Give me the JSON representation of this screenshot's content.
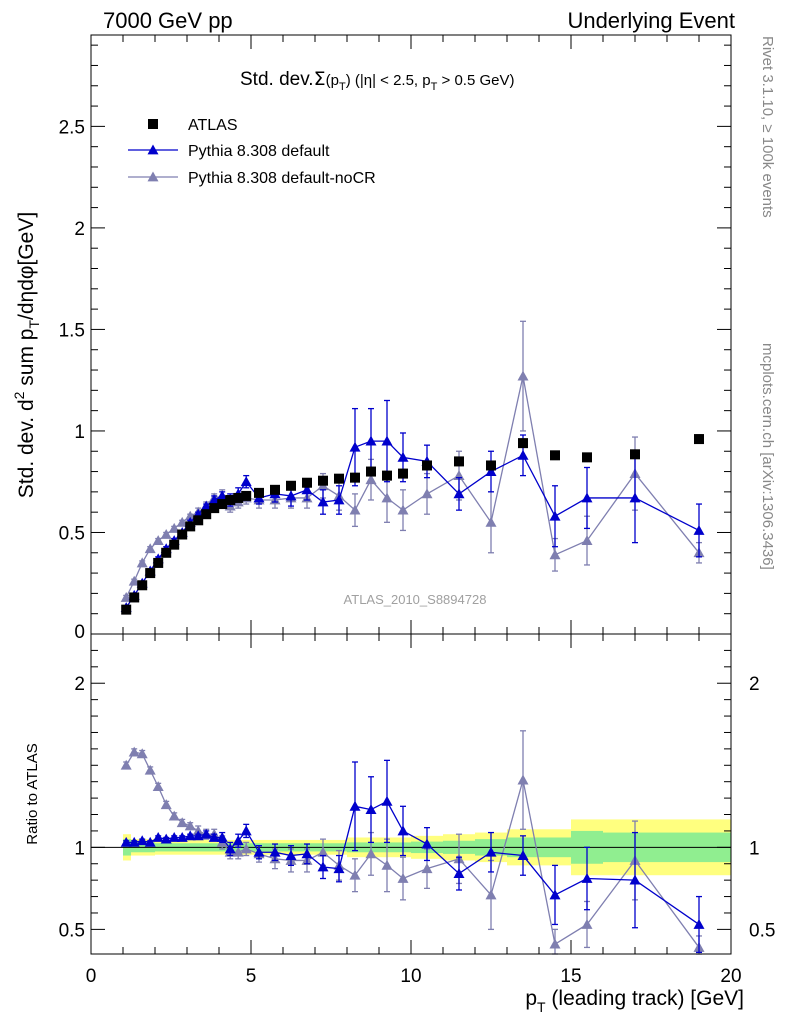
{
  "header": {
    "left": "7000 GeV pp",
    "right": "Underlying Event"
  },
  "side_labels": {
    "rivet": "Rivet 3.1.10, ≥ 100k events",
    "mcplots": "mcplots.cern.ch [arXiv:1306.3436]"
  },
  "watermark": "ATLAS_2010_S8894728",
  "chart_data": [
    {
      "type": "scatter",
      "panel": "main",
      "title_parts": {
        "prefix": "Std. dev.",
        "sigma": "Σ",
        "arg": "(p",
        "sub": "T",
        "close": ")",
        "cut1": "(|η| < 2.5, p",
        "cut_sub": "T",
        "cut2": " > 0.5 GeV)"
      },
      "ylabel_parts": {
        "a": "Std. dev. d",
        "sup": "2",
        "b": " sum p",
        "sub": "T",
        "c": "/dηdφ[GeV]"
      },
      "xlim": [
        0,
        20
      ],
      "ylim": [
        0,
        2.95
      ],
      "yticks": [
        0.5,
        1,
        1.5,
        2,
        2.5
      ],
      "ytick_labels": [
        "0.5",
        "1",
        "1.5",
        "2",
        "2.5"
      ],
      "ytick_bottom_label": "0",
      "legend_placement": "top-left",
      "series": [
        {
          "name": "ATLAS",
          "color": "#000000",
          "marker": "square",
          "x": [
            1.1,
            1.35,
            1.6,
            1.85,
            2.1,
            2.35,
            2.6,
            2.85,
            3.1,
            3.35,
            3.6,
            3.85,
            4.1,
            4.35,
            4.6,
            4.85,
            5.25,
            5.75,
            6.25,
            6.75,
            7.25,
            7.75,
            8.25,
            8.75,
            9.25,
            9.75,
            10.5,
            11.5,
            12.5,
            13.5,
            14.5,
            15.5,
            17.0,
            19.0
          ],
          "y": [
            0.12,
            0.18,
            0.24,
            0.3,
            0.35,
            0.4,
            0.44,
            0.49,
            0.53,
            0.56,
            0.59,
            0.62,
            0.64,
            0.66,
            0.67,
            0.68,
            0.695,
            0.71,
            0.73,
            0.745,
            0.755,
            0.765,
            0.77,
            0.8,
            0.78,
            0.79,
            0.83,
            0.85,
            0.83,
            0.94,
            0.88,
            0.87,
            0.885,
            0.96
          ],
          "err": [
            0.01,
            0.01,
            0.01,
            0.01,
            0.01,
            0.01,
            0.01,
            0.01,
            0.01,
            0.01,
            0.01,
            0.01,
            0.01,
            0.01,
            0.01,
            0.01,
            0.01,
            0.01,
            0.01,
            0.01,
            0.01,
            0.01,
            0.02,
            0.02,
            0.02,
            0.02,
            0.02,
            0.02,
            0.02,
            0.02,
            0.02,
            0.02,
            0.02,
            0.02
          ]
        },
        {
          "name": "Pythia 8.308 default",
          "color": "#0000cc",
          "marker": "triangle",
          "x": [
            1.1,
            1.35,
            1.6,
            1.85,
            2.1,
            2.35,
            2.6,
            2.85,
            3.1,
            3.35,
            3.6,
            3.85,
            4.1,
            4.35,
            4.6,
            4.85,
            5.25,
            5.75,
            6.25,
            6.75,
            7.25,
            7.75,
            8.25,
            8.75,
            9.25,
            9.75,
            10.5,
            11.5,
            12.5,
            13.5,
            14.5,
            15.5,
            17.0,
            19.0
          ],
          "y": [
            0.13,
            0.19,
            0.25,
            0.31,
            0.37,
            0.42,
            0.46,
            0.5,
            0.55,
            0.59,
            0.63,
            0.66,
            0.68,
            0.66,
            0.69,
            0.75,
            0.67,
            0.69,
            0.68,
            0.71,
            0.65,
            0.66,
            0.92,
            0.95,
            0.95,
            0.87,
            0.85,
            0.69,
            0.8,
            0.88,
            0.58,
            0.67,
            0.67,
            0.51
          ],
          "err": [
            0.01,
            0.01,
            0.01,
            0.01,
            0.01,
            0.01,
            0.01,
            0.01,
            0.01,
            0.01,
            0.01,
            0.02,
            0.02,
            0.03,
            0.03,
            0.03,
            0.03,
            0.04,
            0.05,
            0.05,
            0.06,
            0.07,
            0.19,
            0.16,
            0.2,
            0.12,
            0.08,
            0.08,
            0.1,
            0.1,
            0.15,
            0.15,
            0.22,
            0.13
          ]
        },
        {
          "name": "Pythia 8.308 default-noCR",
          "color": "#7f7fb0",
          "marker": "triangle",
          "x": [
            1.1,
            1.35,
            1.6,
            1.85,
            2.1,
            2.35,
            2.6,
            2.85,
            3.1,
            3.35,
            3.6,
            3.85,
            4.1,
            4.35,
            4.6,
            4.85,
            5.25,
            5.75,
            6.25,
            6.75,
            7.25,
            7.75,
            8.25,
            8.75,
            9.25,
            9.75,
            10.5,
            11.5,
            12.5,
            13.5,
            14.5,
            15.5,
            17.0,
            19.0
          ],
          "y": [
            0.18,
            0.26,
            0.35,
            0.42,
            0.46,
            0.49,
            0.52,
            0.55,
            0.58,
            0.6,
            0.63,
            0.67,
            0.68,
            0.63,
            0.65,
            0.67,
            0.66,
            0.66,
            0.67,
            0.67,
            0.73,
            0.68,
            0.61,
            0.76,
            0.67,
            0.61,
            0.69,
            0.78,
            0.55,
            1.27,
            0.39,
            0.46,
            0.79,
            0.4
          ],
          "err": [
            0.01,
            0.01,
            0.01,
            0.01,
            0.01,
            0.01,
            0.01,
            0.01,
            0.01,
            0.02,
            0.02,
            0.02,
            0.03,
            0.03,
            0.03,
            0.03,
            0.04,
            0.04,
            0.05,
            0.05,
            0.06,
            0.07,
            0.08,
            0.1,
            0.12,
            0.1,
            0.1,
            0.12,
            0.15,
            0.27,
            0.08,
            0.12,
            0.18,
            0.05
          ]
        }
      ]
    },
    {
      "type": "scatter",
      "panel": "ratio",
      "ylabel": "Ratio to ATLAS",
      "xlabel_parts": {
        "a": "p",
        "sub": "T",
        "b": " (leading track) [GeV]"
      },
      "xlim": [
        0,
        20
      ],
      "ylim": [
        0.35,
        2.3
      ],
      "yticks": [
        0.5,
        1,
        2
      ],
      "ytick_labels": [
        "0.5",
        "1",
        "2"
      ],
      "xticks": [
        0,
        5,
        10,
        15,
        20
      ],
      "xtick_labels": [
        "0",
        "5",
        "10",
        "15",
        "20"
      ],
      "band_colors": {
        "stat": "#90ee90",
        "total": "#ffff7f"
      },
      "band_bins": [
        {
          "x0": 1.0,
          "x1": 1.25,
          "inner": 0.05,
          "outer": 0.08
        },
        {
          "x0": 1.25,
          "x1": 2.0,
          "inner": 0.03,
          "outer": 0.05
        },
        {
          "x0": 2.0,
          "x1": 5.0,
          "inner": 0.025,
          "outer": 0.045
        },
        {
          "x0": 5.0,
          "x1": 8.0,
          "inner": 0.025,
          "outer": 0.045
        },
        {
          "x0": 8.0,
          "x1": 10.0,
          "inner": 0.03,
          "outer": 0.06
        },
        {
          "x0": 10.0,
          "x1": 11.0,
          "inner": 0.035,
          "outer": 0.07
        },
        {
          "x0": 11.0,
          "x1": 12.0,
          "inner": 0.04,
          "outer": 0.08
        },
        {
          "x0": 12.0,
          "x1": 13.0,
          "inner": 0.05,
          "outer": 0.09
        },
        {
          "x0": 13.0,
          "x1": 14.0,
          "inner": 0.06,
          "outer": 0.11
        },
        {
          "x0": 14.0,
          "x1": 15.0,
          "inner": 0.06,
          "outer": 0.11
        },
        {
          "x0": 15.0,
          "x1": 16.0,
          "inner": 0.1,
          "outer": 0.17
        },
        {
          "x0": 16.0,
          "x1": 18.0,
          "inner": 0.09,
          "outer": 0.17
        },
        {
          "x0": 18.0,
          "x1": 20.0,
          "inner": 0.09,
          "outer": 0.17
        }
      ],
      "series": [
        {
          "name": "Pythia 8.308 default",
          "color": "#0000cc",
          "x": [
            1.1,
            1.35,
            1.6,
            1.85,
            2.1,
            2.35,
            2.6,
            2.85,
            3.1,
            3.35,
            3.6,
            3.85,
            4.1,
            4.35,
            4.6,
            4.85,
            5.25,
            5.75,
            6.25,
            6.75,
            7.25,
            7.75,
            8.25,
            8.75,
            9.25,
            9.75,
            10.5,
            11.5,
            12.5,
            13.5,
            14.5,
            15.5,
            17.0,
            19.0
          ],
          "y": [
            1.03,
            1.03,
            1.04,
            1.03,
            1.06,
            1.05,
            1.06,
            1.06,
            1.07,
            1.07,
            1.08,
            1.06,
            1.06,
            0.99,
            1.04,
            1.1,
            0.97,
            0.97,
            0.95,
            0.96,
            0.88,
            0.87,
            1.25,
            1.23,
            1.28,
            1.1,
            1.02,
            0.84,
            0.97,
            0.95,
            0.71,
            0.81,
            0.8,
            0.53
          ],
          "err": [
            0.01,
            0.01,
            0.01,
            0.01,
            0.01,
            0.01,
            0.01,
            0.01,
            0.01,
            0.01,
            0.02,
            0.02,
            0.03,
            0.04,
            0.04,
            0.04,
            0.04,
            0.05,
            0.06,
            0.06,
            0.07,
            0.08,
            0.27,
            0.2,
            0.25,
            0.15,
            0.1,
            0.1,
            0.12,
            0.12,
            0.18,
            0.19,
            0.29,
            0.17
          ]
        },
        {
          "name": "Pythia 8.308 default-noCR",
          "color": "#7f7fb0",
          "x": [
            1.1,
            1.35,
            1.6,
            1.85,
            2.1,
            2.35,
            2.6,
            2.85,
            3.1,
            3.35,
            3.6,
            3.85,
            4.1,
            4.35,
            4.6,
            4.85,
            5.25,
            5.75,
            6.25,
            6.75,
            7.25,
            7.75,
            8.25,
            8.75,
            9.25,
            9.75,
            10.5,
            11.5,
            12.5,
            13.5,
            14.5,
            15.5,
            17.0,
            19.0
          ],
          "y": [
            1.5,
            1.58,
            1.57,
            1.47,
            1.37,
            1.26,
            1.19,
            1.15,
            1.13,
            1.1,
            1.08,
            1.08,
            1.03,
            0.97,
            0.97,
            0.99,
            0.96,
            0.93,
            0.92,
            0.92,
            0.97,
            0.89,
            0.83,
            0.96,
            0.89,
            0.81,
            0.87,
            0.93,
            0.71,
            1.41,
            0.41,
            0.53,
            0.92,
            0.39
          ],
          "err": [
            0.02,
            0.02,
            0.02,
            0.02,
            0.02,
            0.02,
            0.02,
            0.02,
            0.02,
            0.03,
            0.03,
            0.03,
            0.04,
            0.04,
            0.04,
            0.04,
            0.05,
            0.06,
            0.07,
            0.07,
            0.08,
            0.09,
            0.1,
            0.13,
            0.16,
            0.13,
            0.12,
            0.15,
            0.21,
            0.3,
            0.09,
            0.14,
            0.24,
            0.07
          ]
        }
      ]
    }
  ]
}
